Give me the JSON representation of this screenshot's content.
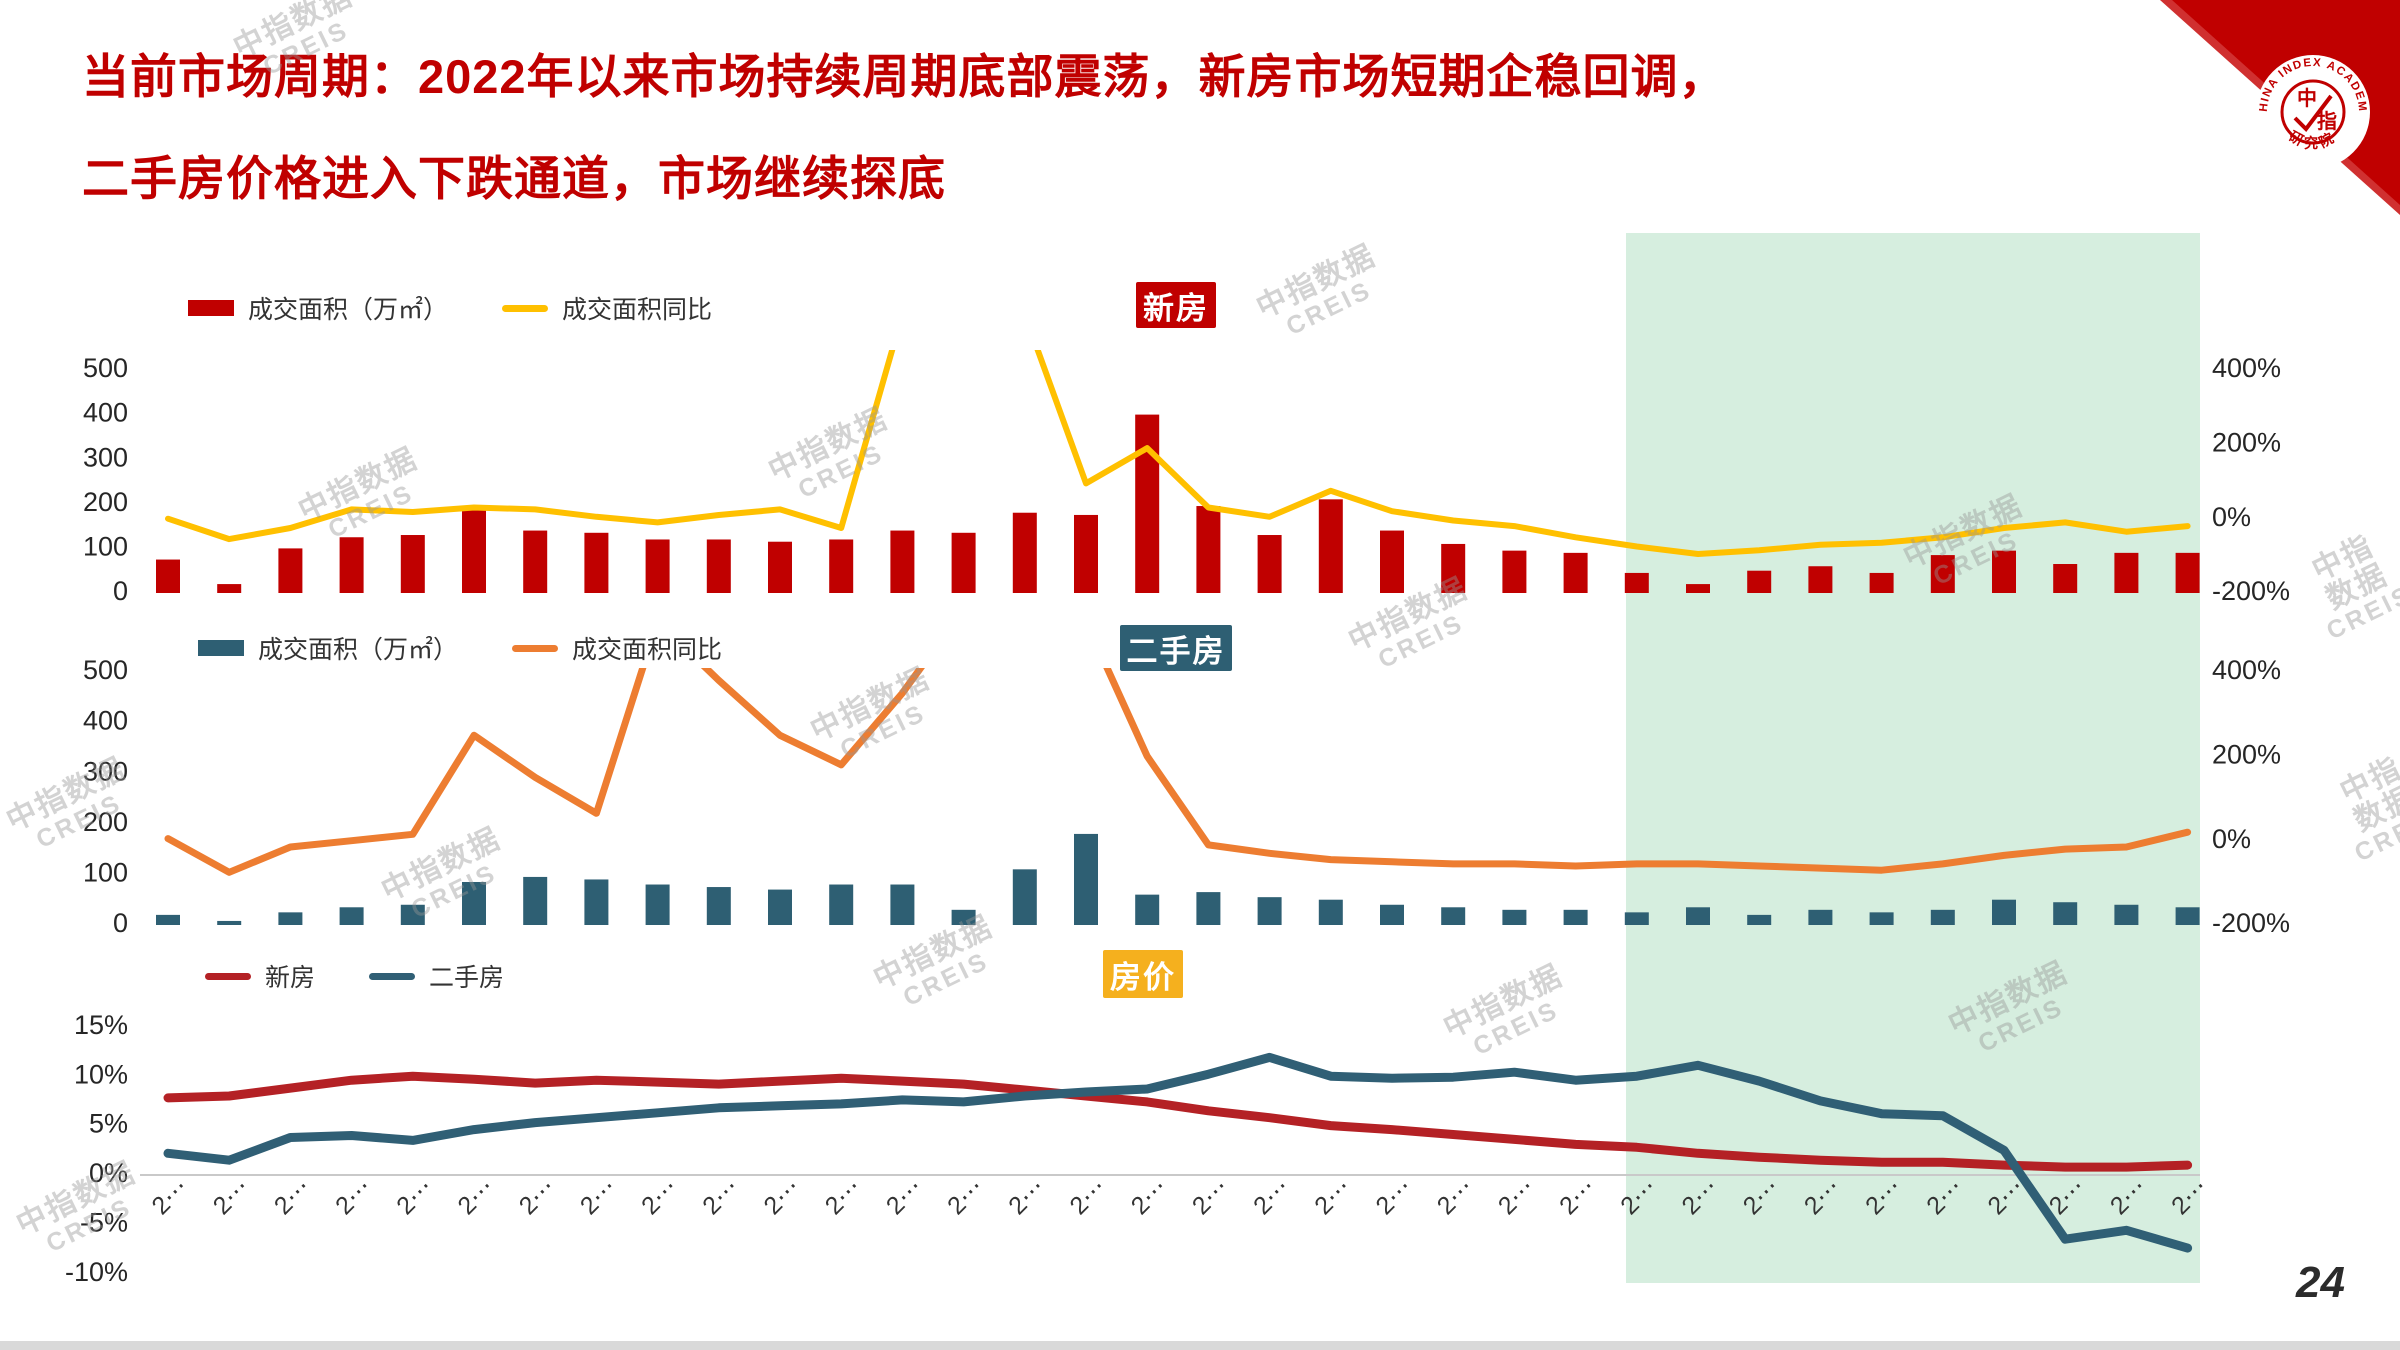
{
  "slide": {
    "title_line1": "当前市场周期：2022年以来市场持续周期底部震荡，新房市场短期企稳回调，",
    "title_line2": "二手房价格进入下跌通道，市场继续探底",
    "page_number": "24",
    "watermark": {
      "main": "中指数据",
      "sub": "CREIS"
    },
    "highlight": {
      "color": "#D6EEDF",
      "covers_periods": "2024-01 to 2024-10"
    }
  },
  "logo": {
    "ring_text": "CHINA INDEX ACADEMY",
    "center_text": "中指",
    "bottom_text": "研究院",
    "triangle_color": "#C00000"
  },
  "chart_data": [
    {
      "id": "new-home",
      "type": "bar",
      "badge": "新房",
      "badge_color": "#C00000",
      "legend": [
        {
          "label": "成交面积（万㎡）",
          "swatch": "bar",
          "color": "#C00000"
        },
        {
          "label": "成交面积同比",
          "swatch": "line",
          "color": "#FFC000"
        }
      ],
      "left_axis": {
        "tick_labels": [
          "500",
          "400",
          "300",
          "200",
          "100",
          "0"
        ],
        "min": 0,
        "max": 500
      },
      "right_axis": {
        "tick_labels": [
          "400%",
          "200%",
          "0%",
          "-200%"
        ],
        "min": -200,
        "max": 400
      },
      "categories_inferred": [
        "2022-01",
        "2022-02",
        "2022-03",
        "2022-04",
        "2022-05",
        "2022-06",
        "2022-07",
        "2022-08",
        "2022-09",
        "2022-10",
        "2022-11",
        "2022-12",
        "2023-01",
        "2023-02",
        "2023-03",
        "2023-04",
        "2023-05",
        "2023-06",
        "2023-07",
        "2023-08",
        "2023-09",
        "2023-10",
        "2023-11",
        "2023-12",
        "2024-01",
        "2024-02",
        "2024-03",
        "2024-04",
        "2024-05",
        "2024-06",
        "2024-07",
        "2024-08",
        "2024-09",
        "2024-10"
      ],
      "series": [
        {
          "name": "成交面积（万㎡）",
          "type": "bar",
          "axis": "left",
          "color": "#C00000",
          "values": [
            75,
            20,
            100,
            125,
            130,
            185,
            140,
            135,
            120,
            120,
            115,
            120,
            140,
            135,
            180,
            175,
            400,
            195,
            130,
            210,
            140,
            110,
            95,
            90,
            45,
            20,
            50,
            60,
            45,
            85,
            95,
            65,
            90,
            90
          ]
        },
        {
          "name": "成交面积同比",
          "type": "line",
          "axis": "right",
          "color": "#FFC000",
          "values_pct": [
            0,
            -55,
            -25,
            25,
            18,
            30,
            25,
            5,
            -10,
            10,
            25,
            -25,
            550,
            480,
            550,
            95,
            190,
            30,
            5,
            75,
            20,
            -5,
            -20,
            -50,
            -75,
            -95,
            -85,
            -70,
            -65,
            -50,
            -25,
            -10,
            -35,
            -20
          ],
          "note": "values above 400% run off the top of the plot (clipped spikes)"
        }
      ]
    },
    {
      "id": "second-hand",
      "type": "bar",
      "badge": "二手房",
      "badge_color": "#2E5F73",
      "legend": [
        {
          "label": "成交面积（万㎡）",
          "swatch": "bar",
          "color": "#2E5F73"
        },
        {
          "label": "成交面积同比",
          "swatch": "line",
          "color": "#ED7D31"
        }
      ],
      "left_axis": {
        "tick_labels": [
          "500",
          "400",
          "300",
          "200",
          "100",
          "0"
        ],
        "min": 0,
        "max": 500
      },
      "right_axis": {
        "tick_labels": [
          "400%",
          "200%",
          "0%",
          "-200%"
        ],
        "min": -200,
        "max": 400
      },
      "categories_inferred": [
        "2022-01",
        "2022-02",
        "2022-03",
        "2022-04",
        "2022-05",
        "2022-06",
        "2022-07",
        "2022-08",
        "2022-09",
        "2022-10",
        "2022-11",
        "2022-12",
        "2023-01",
        "2023-02",
        "2023-03",
        "2023-04",
        "2023-05",
        "2023-06",
        "2023-07",
        "2023-08",
        "2023-09",
        "2023-10",
        "2023-11",
        "2023-12",
        "2024-01",
        "2024-02",
        "2024-03",
        "2024-04",
        "2024-05",
        "2024-06",
        "2024-07",
        "2024-08",
        "2024-09",
        "2024-10"
      ],
      "series": [
        {
          "name": "成交面积（万㎡）",
          "type": "bar",
          "axis": "left",
          "color": "#2E5F73",
          "values": [
            20,
            8,
            25,
            35,
            40,
            85,
            95,
            90,
            80,
            75,
            70,
            80,
            80,
            30,
            110,
            180,
            60,
            65,
            55,
            50,
            40,
            35,
            30,
            30,
            25,
            35,
            20,
            30,
            25,
            30,
            50,
            45,
            40,
            35
          ]
        },
        {
          "name": "成交面积同比",
          "type": "line",
          "axis": "right",
          "color": "#ED7D31",
          "values_pct": [
            5,
            -75,
            -15,
            0,
            15,
            250,
            150,
            65,
            520,
            380,
            250,
            180,
            350,
            550,
            560,
            520,
            200,
            -10,
            -30,
            -45,
            -50,
            -55,
            -55,
            -60,
            -55,
            -55,
            -60,
            -65,
            -70,
            -55,
            -35,
            -20,
            -15,
            20
          ],
          "note": "values above 400% run off the top of the plot (clipped spikes)"
        }
      ]
    },
    {
      "id": "price",
      "type": "line",
      "badge": "房价",
      "badge_color": "#F5B01E",
      "legend": [
        {
          "label": "新房",
          "swatch": "line",
          "color": "#B42125"
        },
        {
          "label": "二手房",
          "swatch": "line",
          "color": "#305F75"
        }
      ],
      "left_axis": {
        "tick_labels": [
          "15%",
          "10%",
          "5%",
          "0%",
          "-5%",
          "-10%"
        ],
        "min": -10,
        "max": 15
      },
      "x_axis": {
        "tick_count": 34,
        "tick_label_rendered": "2⋯",
        "labels_clipped": true
      },
      "categories_inferred": [
        "2022-01",
        "2022-02",
        "2022-03",
        "2022-04",
        "2022-05",
        "2022-06",
        "2022-07",
        "2022-08",
        "2022-09",
        "2022-10",
        "2022-11",
        "2022-12",
        "2023-01",
        "2023-02",
        "2023-03",
        "2023-04",
        "2023-05",
        "2023-06",
        "2023-07",
        "2023-08",
        "2023-09",
        "2023-10",
        "2023-11",
        "2023-12",
        "2024-01",
        "2024-02",
        "2024-03",
        "2024-04",
        "2024-05",
        "2024-06",
        "2024-07",
        "2024-08",
        "2024-09",
        "2024-10"
      ],
      "series": [
        {
          "name": "新房",
          "type": "line",
          "color": "#B42125",
          "values_pct": [
            7.8,
            8.0,
            8.8,
            9.6,
            10.0,
            9.7,
            9.3,
            9.6,
            9.4,
            9.2,
            9.5,
            9.8,
            9.5,
            9.2,
            8.6,
            8.0,
            7.4,
            6.5,
            5.8,
            5.0,
            4.6,
            4.1,
            3.6,
            3.1,
            2.8,
            2.2,
            1.8,
            1.5,
            1.3,
            1.3,
            1.0,
            0.8,
            0.8,
            1.0
          ]
        },
        {
          "name": "二手房",
          "type": "line",
          "color": "#305F75",
          "values_pct": [
            2.2,
            1.5,
            3.8,
            4.0,
            3.5,
            4.6,
            5.3,
            5.8,
            6.3,
            6.8,
            7.0,
            7.2,
            7.6,
            7.4,
            8.0,
            8.4,
            8.7,
            10.2,
            11.9,
            10.0,
            9.8,
            9.9,
            10.4,
            9.6,
            10.0,
            11.1,
            9.5,
            7.5,
            6.2,
            6.0,
            2.5,
            -6.5,
            -5.6,
            -7.4
          ]
        }
      ]
    }
  ]
}
